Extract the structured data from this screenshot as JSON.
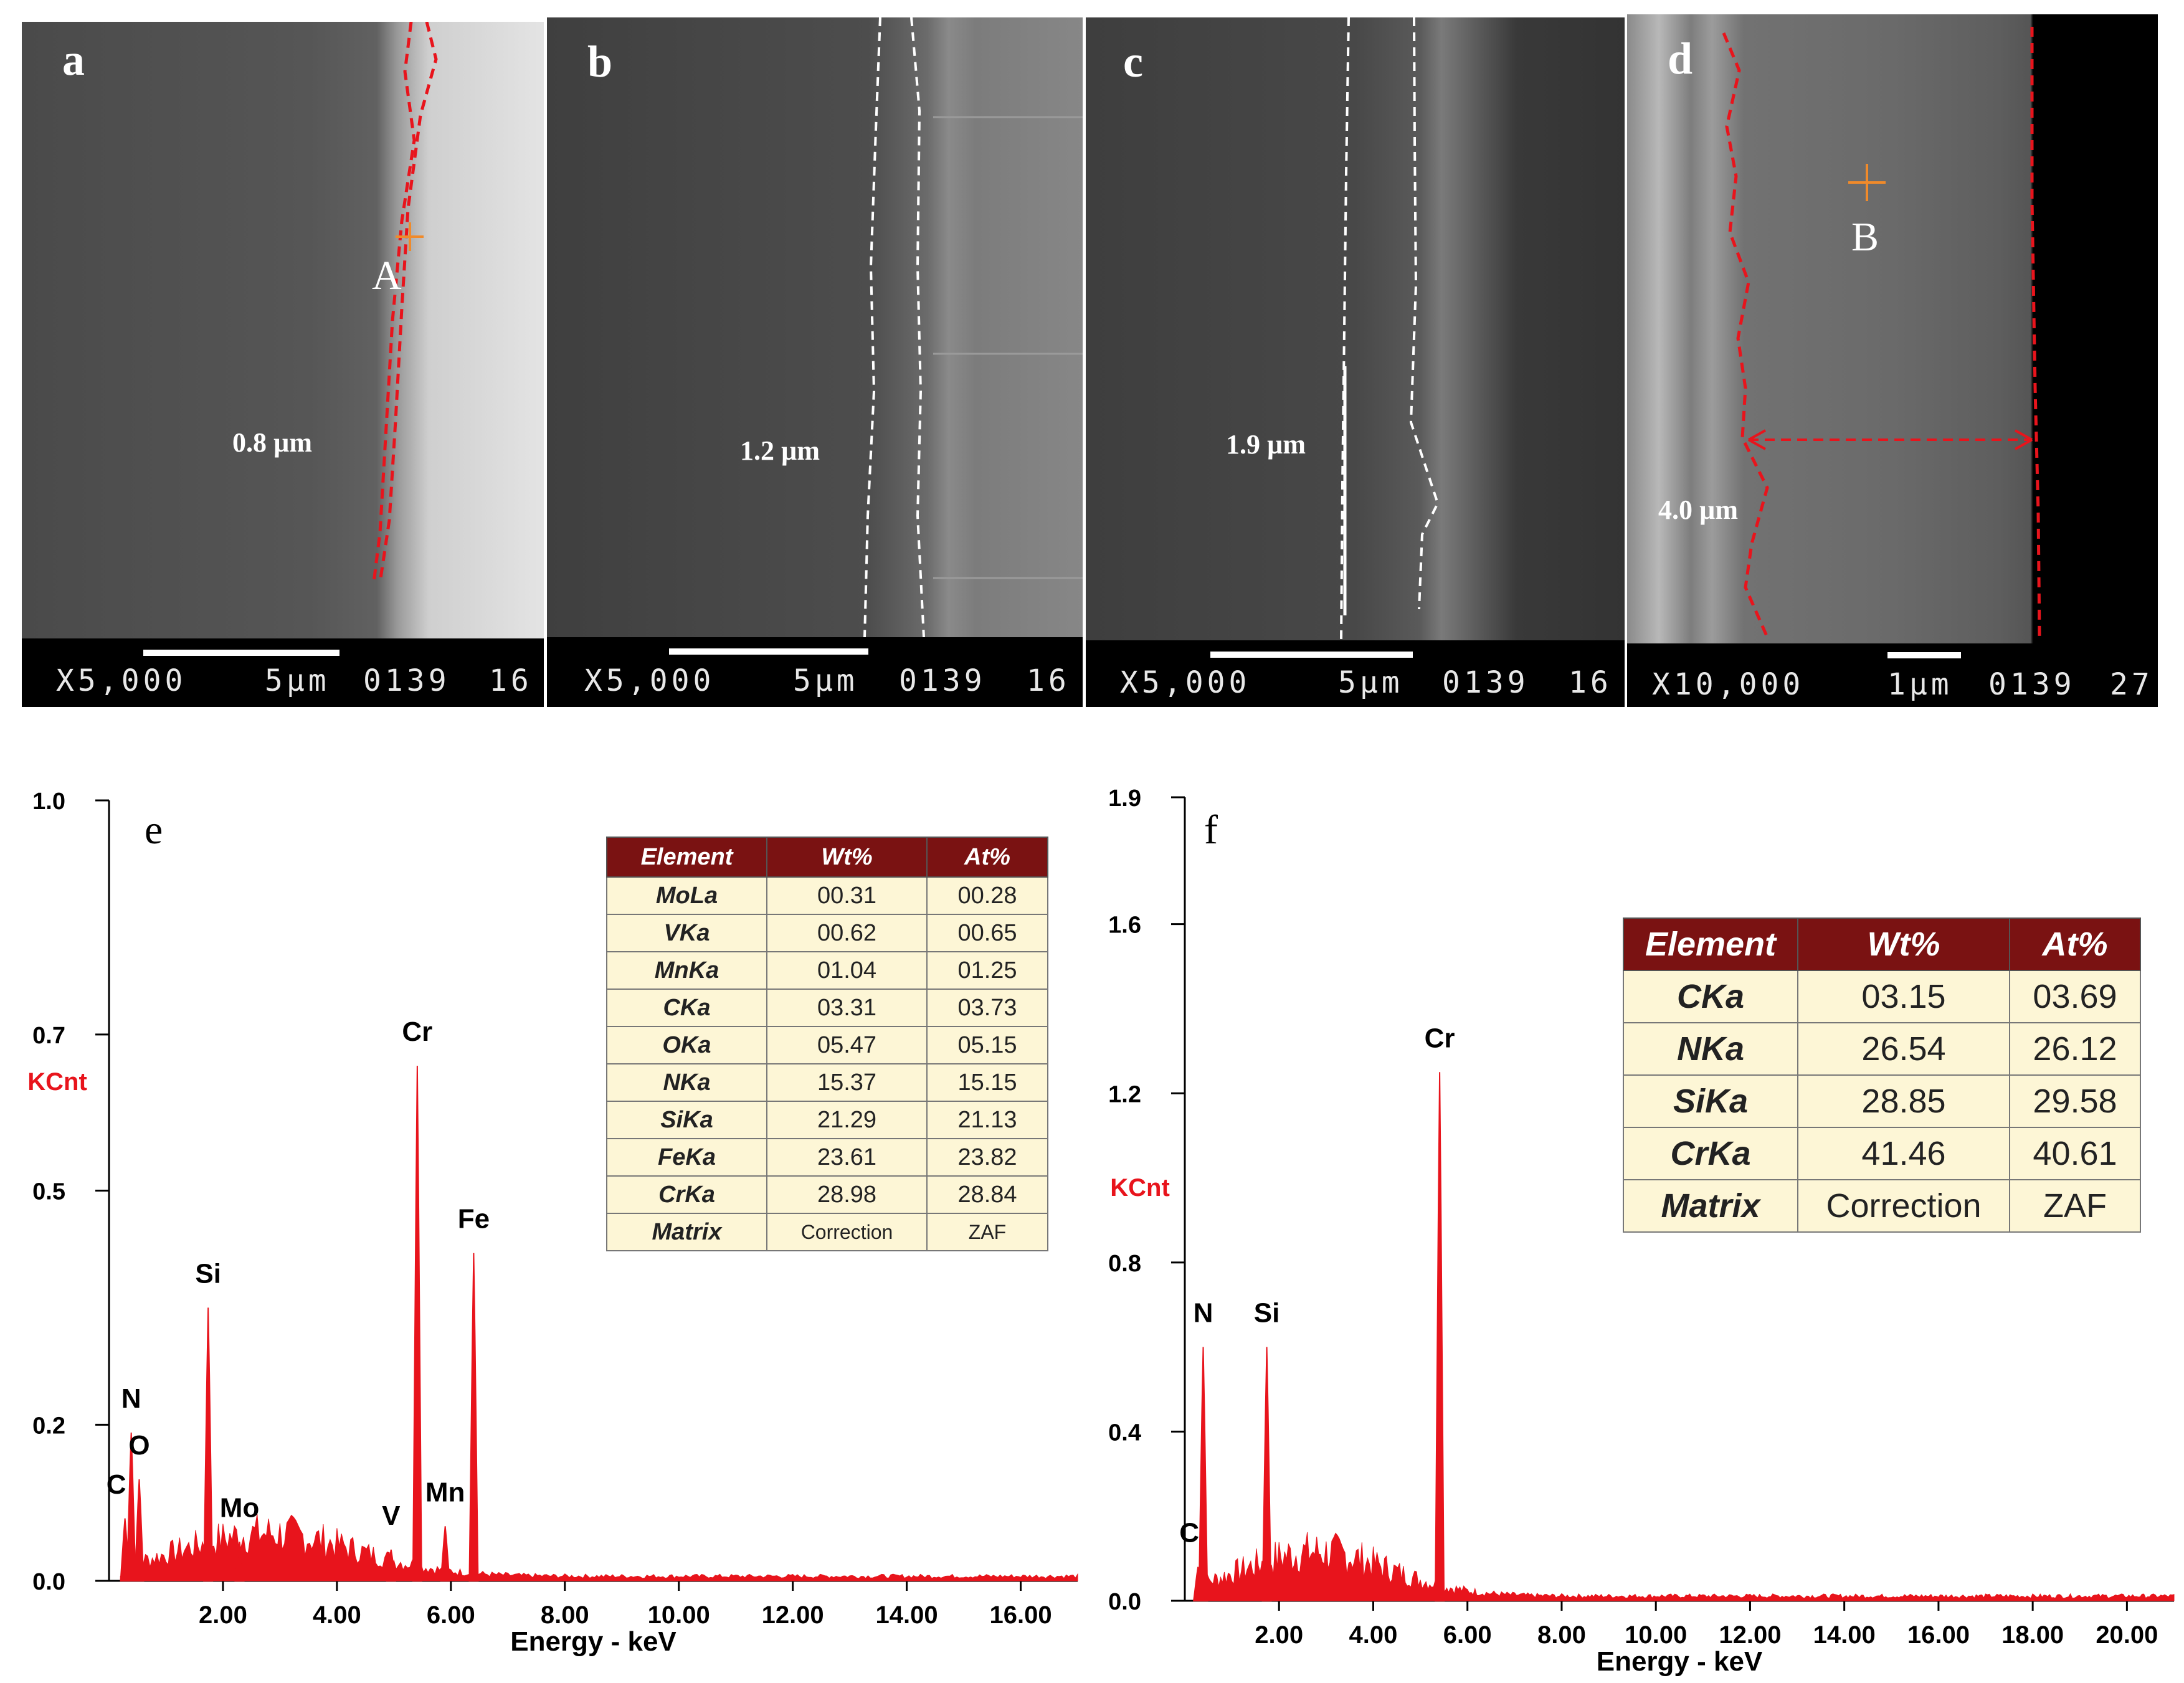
{
  "sem_panels": [
    {
      "letter": "a",
      "magnification": "X5,000",
      "scale": "5µm",
      "code": "0139",
      "frame": "16",
      "thickness": "0.8 µm",
      "point": "A"
    },
    {
      "letter": "b",
      "magnification": "X5,000",
      "scale": "5µm",
      "code": "0139",
      "frame": "16",
      "thickness": "1.2 µm"
    },
    {
      "letter": "c",
      "magnification": "X5,000",
      "scale": "5µm",
      "code": "0139",
      "frame": "16",
      "thickness": "1.9 µm"
    },
    {
      "letter": "d",
      "magnification": "X10,000",
      "scale": "1µm",
      "code": "0139",
      "frame": "27",
      "thickness": "4.0 µm",
      "point": "B"
    }
  ],
  "eds_tables": {
    "e": {
      "headers": [
        "Element",
        "Wt%",
        "At%"
      ],
      "rows": [
        [
          "MoLa",
          "00.31",
          "00.28"
        ],
        [
          "VKa",
          "00.62",
          "00.65"
        ],
        [
          "MnKa",
          "01.04",
          "01.25"
        ],
        [
          "CKa",
          "03.31",
          "03.73"
        ],
        [
          "OKa",
          "05.47",
          "05.15"
        ],
        [
          "NKa",
          "15.37",
          "15.15"
        ],
        [
          "SiKa",
          "21.29",
          "21.13"
        ],
        [
          "FeKa",
          "23.61",
          "23.82"
        ],
        [
          "CrKa",
          "28.98",
          "28.84"
        ],
        [
          "Matrix",
          "Correction",
          "ZAF"
        ]
      ]
    },
    "f": {
      "headers": [
        "Element",
        "Wt%",
        "At%"
      ],
      "rows": [
        [
          "CKa",
          "03.15",
          "03.69"
        ],
        [
          "NKa",
          "26.54",
          "26.12"
        ],
        [
          "SiKa",
          "28.85",
          "29.58"
        ],
        [
          "CrKa",
          "41.46",
          "40.61"
        ],
        [
          "Matrix",
          "Correction",
          "ZAF"
        ]
      ]
    }
  },
  "colors": {
    "spectrum": "#e8141c",
    "ylabel": "#e8141c",
    "trace_line": "#e8141c",
    "table_header": "#7a1212",
    "table_body": "#fdf6d6"
  },
  "chart_data": [
    {
      "type": "line",
      "panel": "e",
      "xlabel": "Energy - keV",
      "ylabel": "KCnt",
      "xlim": [
        0,
        17.0
      ],
      "ylim": [
        0,
        1.0
      ],
      "xticks": [
        2,
        4,
        6,
        8,
        10,
        12,
        14,
        16
      ],
      "xtick_labels": [
        "2.00",
        "4.00",
        "6.00",
        "8.00",
        "10.00",
        "12.00",
        "14.00",
        "16.00"
      ],
      "yticks": [
        0,
        0.2,
        0.5,
        0.7,
        1.0
      ],
      "ytick_labels": [
        "0.0",
        "0.2",
        "0.5",
        "0.7",
        "1.0"
      ],
      "peaks": [
        {
          "label": "C",
          "x": 0.28,
          "y": 0.08
        },
        {
          "label": "N",
          "x": 0.39,
          "y": 0.19
        },
        {
          "label": "O",
          "x": 0.53,
          "y": 0.13
        },
        {
          "label": "Si",
          "x": 1.74,
          "y": 0.35
        },
        {
          "label": "Mo",
          "x": 2.29,
          "y": 0.05
        },
        {
          "label": "V",
          "x": 4.95,
          "y": 0.04
        },
        {
          "label": "Cr",
          "x": 5.41,
          "y": 0.66
        },
        {
          "label": "Mn",
          "x": 5.9,
          "y": 0.07
        },
        {
          "label": "Fe",
          "x": 6.4,
          "y": 0.42
        }
      ]
    },
    {
      "type": "line",
      "panel": "f",
      "xlabel": "Energy - keV",
      "ylabel": "KCnt",
      "xlim": [
        0,
        21.0
      ],
      "ylim": [
        0,
        1.9
      ],
      "xticks": [
        2,
        4,
        6,
        8,
        10,
        12,
        14,
        16,
        18,
        20
      ],
      "xtick_labels": [
        "2.00",
        "4.00",
        "6.00",
        "8.00",
        "10.00",
        "12.00",
        "14.00",
        "16.00",
        "18.00",
        "20.00"
      ],
      "yticks": [
        0,
        0.4,
        0.8,
        1.2,
        1.6,
        1.9
      ],
      "ytick_labels": [
        "0.0",
        "0.4",
        "0.8",
        "1.2",
        "1.6",
        "1.9"
      ],
      "peaks": [
        {
          "label": "C",
          "x": 0.28,
          "y": 0.08
        },
        {
          "label": "N",
          "x": 0.39,
          "y": 0.6
        },
        {
          "label": "Si",
          "x": 1.74,
          "y": 0.6
        },
        {
          "label": "Cr",
          "x": 5.41,
          "y": 1.25
        }
      ]
    }
  ]
}
